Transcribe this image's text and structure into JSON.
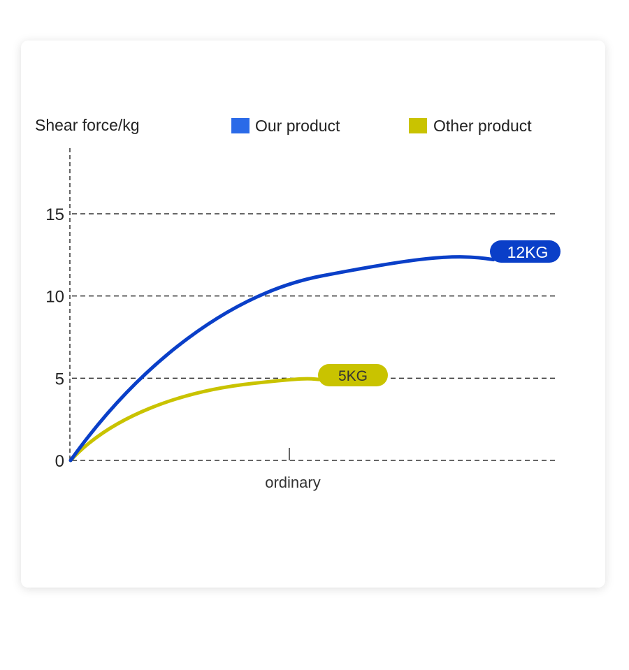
{
  "colors": {
    "our_product": "#0a3fc8",
    "our_product_legend": "#2a6ae8",
    "other_product": "#c9c300",
    "grid": "#333333",
    "text": "#222222"
  },
  "chart_data": {
    "type": "line",
    "ylabel": "Shear force/kg",
    "xlabel": "",
    "x_tick_labels": [
      "ordinary"
    ],
    "y_ticks": [
      0,
      5,
      10,
      15
    ],
    "ylim": [
      0,
      19
    ],
    "grid": "horizontal dashed",
    "legend_position": "top",
    "series": [
      {
        "name": "Our product",
        "color": "#0a3fc8",
        "legend_color": "#2a6ae8",
        "end_label": "12KG",
        "max_value": 12
      },
      {
        "name": "Other product",
        "color": "#c9c300",
        "legend_color": "#c9c300",
        "end_label": "5KG",
        "max_value": 5
      }
    ]
  }
}
